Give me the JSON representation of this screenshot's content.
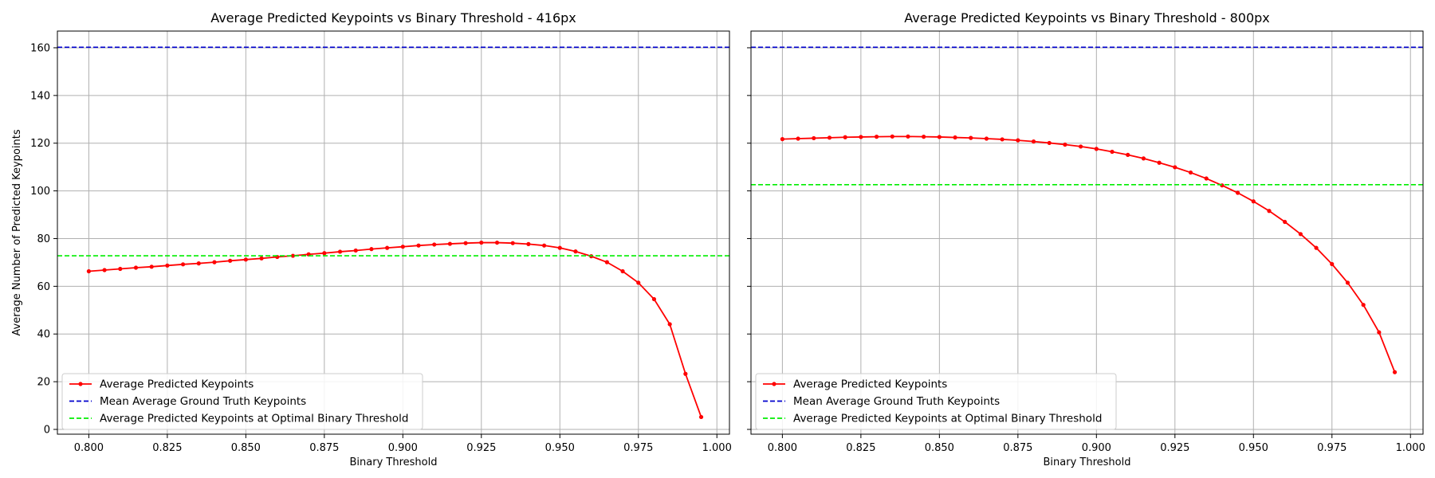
{
  "chart_data": [
    {
      "type": "line",
      "title": "Average Predicted Keypoints vs Binary Threshold - 416px",
      "xlabel": "Binary Threshold",
      "ylabel": "Average Number of Predicted Keypoints",
      "xlim": [
        0.79,
        1.004
      ],
      "ylim": [
        -2,
        167
      ],
      "xticks": [
        "0.800",
        "0.825",
        "0.850",
        "0.875",
        "0.900",
        "0.925",
        "0.950",
        "0.975",
        "1.000"
      ],
      "yticks": [
        "0",
        "20",
        "40",
        "60",
        "80",
        "100",
        "120",
        "140",
        "160"
      ],
      "grid": true,
      "legend_position": "lower-left",
      "x": [
        0.8,
        0.805,
        0.81,
        0.815,
        0.82,
        0.825,
        0.83,
        0.835,
        0.84,
        0.845,
        0.85,
        0.855,
        0.86,
        0.865,
        0.87,
        0.875,
        0.88,
        0.885,
        0.89,
        0.895,
        0.9,
        0.905,
        0.91,
        0.915,
        0.92,
        0.925,
        0.93,
        0.935,
        0.94,
        0.945,
        0.95,
        0.955,
        0.96,
        0.965,
        0.97,
        0.975,
        0.98,
        0.985,
        0.99,
        0.995
      ],
      "series": [
        {
          "name": "Average Predicted Keypoints",
          "kind": "line-marker",
          "color": "#ff0000",
          "values": [
            66.3,
            66.8,
            67.3,
            67.8,
            68.2,
            68.7,
            69.2,
            69.6,
            70.1,
            70.7,
            71.2,
            71.7,
            72.3,
            72.8,
            73.4,
            73.9,
            74.5,
            75.0,
            75.6,
            76.1,
            76.6,
            77.1,
            77.5,
            77.8,
            78.1,
            78.3,
            78.3,
            78.1,
            77.7,
            77.1,
            76.1,
            74.6,
            72.6,
            70.1,
            66.3,
            61.5,
            54.6,
            44.1,
            23.3,
            5.2
          ]
        },
        {
          "name": "Mean Average Ground Truth Keypoints",
          "kind": "hline",
          "color": "#0000cc",
          "value": 160.2
        },
        {
          "name": "Average Predicted Keypoints at Optimal Binary Threshold",
          "kind": "hline",
          "color": "#00ee00",
          "value": 72.8
        }
      ]
    },
    {
      "type": "line",
      "title": "Average Predicted Keypoints vs Binary Threshold - 800px",
      "xlabel": "Binary Threshold",
      "ylabel": "",
      "xlim": [
        0.79,
        1.004
      ],
      "ylim": [
        -2,
        167
      ],
      "xticks": [
        "0.800",
        "0.825",
        "0.850",
        "0.875",
        "0.900",
        "0.925",
        "0.950",
        "0.975",
        "1.000"
      ],
      "yticks": [],
      "grid": true,
      "legend_position": "lower-left",
      "x": [
        0.8,
        0.805,
        0.81,
        0.815,
        0.82,
        0.825,
        0.83,
        0.835,
        0.84,
        0.845,
        0.85,
        0.855,
        0.86,
        0.865,
        0.87,
        0.875,
        0.88,
        0.885,
        0.89,
        0.895,
        0.9,
        0.905,
        0.91,
        0.915,
        0.92,
        0.925,
        0.93,
        0.935,
        0.94,
        0.945,
        0.95,
        0.955,
        0.96,
        0.965,
        0.97,
        0.975,
        0.98,
        0.985,
        0.99,
        0.995
      ],
      "series": [
        {
          "name": "Average Predicted Keypoints",
          "kind": "line-marker",
          "color": "#ff0000",
          "values": [
            121.7,
            121.9,
            122.1,
            122.3,
            122.5,
            122.6,
            122.7,
            122.8,
            122.8,
            122.7,
            122.6,
            122.4,
            122.2,
            121.9,
            121.6,
            121.2,
            120.7,
            120.1,
            119.4,
            118.6,
            117.6,
            116.4,
            115.1,
            113.6,
            111.8,
            109.9,
            107.7,
            105.2,
            102.3,
            99.2,
            95.6,
            91.6,
            87.0,
            81.9,
            76.1,
            69.3,
            61.5,
            52.2,
            40.7,
            24.0
          ]
        },
        {
          "name": "Mean Average Ground Truth Keypoints",
          "kind": "hline",
          "color": "#0000cc",
          "value": 160.2
        },
        {
          "name": "Average Predicted Keypoints at Optimal Binary Threshold",
          "kind": "hline",
          "color": "#00ee00",
          "value": 102.6
        }
      ]
    }
  ]
}
